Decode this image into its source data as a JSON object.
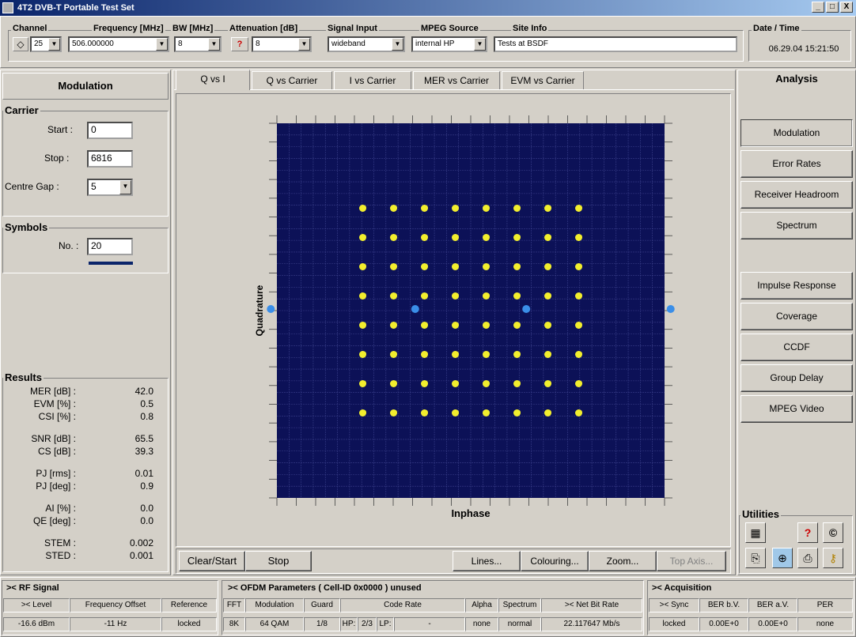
{
  "window": {
    "title": "4T2  DVB-T Portable Test Set",
    "minimize": "_",
    "maximize": "□",
    "close": "X"
  },
  "toolbar": {
    "channel_label": "Channel",
    "channel_value": "25",
    "frequency_label": "Frequency [MHz]",
    "frequency_value": "506.000000",
    "bw_label": "BW [MHz]",
    "bw_value": "8",
    "attenuation_label": "Attenuation [dB]",
    "attenuation_value": "8",
    "signal_input_label": "Signal Input",
    "signal_input_value": "wideband",
    "mpeg_label": "MPEG Source",
    "mpeg_value": "internal HP",
    "site_label": "Site Info",
    "site_value": "Tests at BSDF",
    "date_label": "Date / Time",
    "date_value": "06.29.04 15:21:50"
  },
  "left": {
    "header": "Modulation",
    "carrier_label": "Carrier",
    "start_label": "Start :",
    "start_value": "0",
    "stop_label": "Stop :",
    "stop_value": "6816",
    "centre_gap_label": "Centre Gap :",
    "centre_gap_value": "5",
    "symbols_label": "Symbols",
    "no_label": "No. :",
    "no_value": "20",
    "results_label": "Results",
    "results": [
      {
        "label": "MER [dB] :",
        "value": "42.0"
      },
      {
        "label": "EVM [%] :",
        "value": "0.5"
      },
      {
        "label": "CSI [%] :",
        "value": "0.8"
      },
      {
        "label": "SNR [dB] :",
        "value": "65.5"
      },
      {
        "label": "CS [dB] :",
        "value": "39.3"
      },
      {
        "label": "PJ [rms] :",
        "value": "0.01"
      },
      {
        "label": "PJ [deg] :",
        "value": "0.9"
      },
      {
        "label": "AI [%] :",
        "value": "0.0"
      },
      {
        "label": "QE [deg] :",
        "value": "0.0"
      },
      {
        "label": "STEM :",
        "value": "0.002"
      },
      {
        "label": "STED :",
        "value": "0.001"
      }
    ]
  },
  "tabs": [
    "Q vs I",
    "Q vs Carrier",
    "I vs Carrier",
    "MER vs Carrier",
    "EVM vs Carrier"
  ],
  "plot": {
    "xlabel": "Inphase",
    "ylabel": "Quadrature",
    "bg": "#0c1157",
    "point_color": "#f2ee2e",
    "pilot_color": "#3a8ee8"
  },
  "bottom_buttons": {
    "clear_start": "Clear/Start",
    "stop": "Stop",
    "lines": "Lines...",
    "colouring": "Colouring...",
    "zoom": "Zoom...",
    "top_axis": "Top Axis..."
  },
  "analysis": {
    "header": "Analysis",
    "buttons": [
      "Modulation",
      "Error Rates",
      "Receiver Headroom",
      "Spectrum",
      "Impulse Response",
      "Coverage",
      "CCDF",
      "Group Delay",
      "MPEG Video"
    ],
    "utilities_label": "Utilities"
  },
  "status": {
    "rf_header": ">< RF Signal",
    "ofdm_header": ">< OFDM Parameters ( Cell-ID 0x0000 ) unused",
    "acq_header": ">< Acquisition",
    "rf_cols": [
      ">< Level",
      "Frequency Offset",
      "Reference"
    ],
    "rf_vals": [
      "-16.6 dBm",
      "-11 Hz",
      "locked"
    ],
    "ofdm_cols": [
      "FFT",
      "Modulation",
      "Guard",
      "Code Rate",
      "Alpha",
      "Spectrum",
      ">< Net Bit Rate"
    ],
    "ofdm_vals": [
      "8K",
      "64 QAM",
      "1/8",
      "HP:",
      "2/3",
      "LP:",
      "-",
      "none",
      "normal",
      "22.117647 Mb/s"
    ],
    "acq_cols": [
      ">< Sync",
      "BER b.V.",
      "BER a.V.",
      "PER"
    ],
    "acq_vals": [
      "locked",
      "0.00E+0",
      "0.00E+0",
      "none"
    ]
  }
}
